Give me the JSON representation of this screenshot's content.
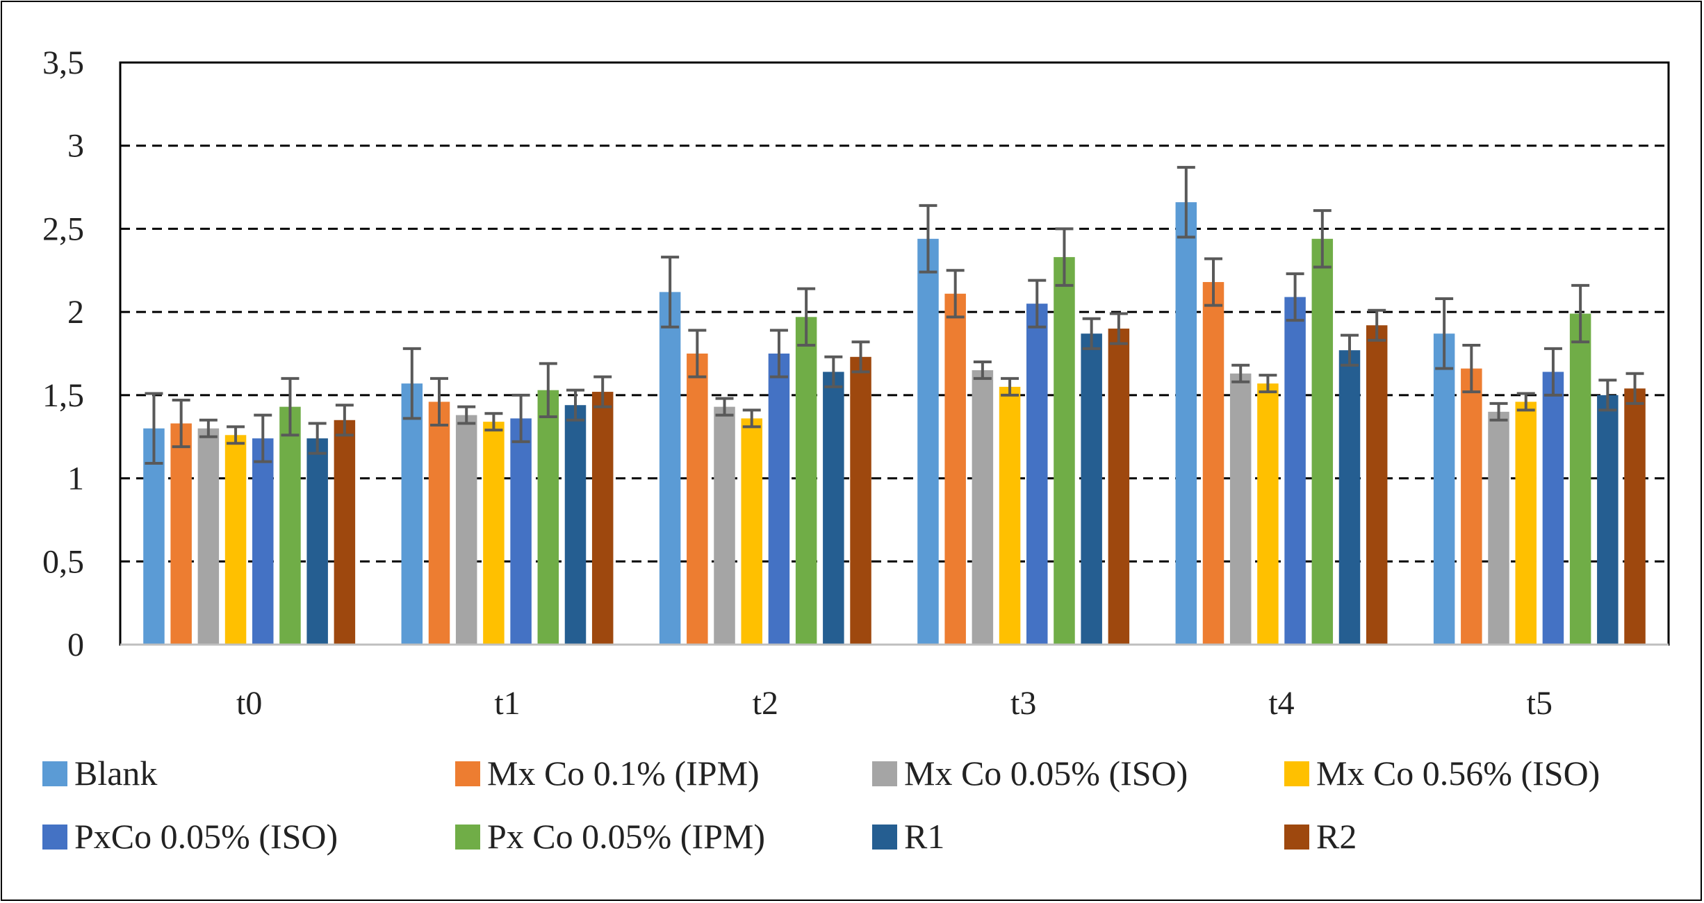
{
  "chart_data": {
    "type": "bar",
    "categories": [
      "t0",
      "t1",
      "t2",
      "t3",
      "t4",
      "t5"
    ],
    "ylim": [
      0,
      3.5
    ],
    "yticks": [
      "0",
      "0,5",
      "1",
      "1,5",
      "2",
      "2,5",
      "3",
      "3,5"
    ],
    "ytick_values": [
      0,
      0.5,
      1,
      1.5,
      2,
      2.5,
      3,
      3.5
    ],
    "grid": "dashed horizontal",
    "legend_position": "bottom",
    "error_bar_color": "#595959",
    "series": [
      {
        "name": "Blank",
        "color": "#5B9BD5",
        "values": [
          1.3,
          1.57,
          2.12,
          2.44,
          2.66,
          1.87
        ],
        "errors": [
          0.21,
          0.21,
          0.21,
          0.2,
          0.21,
          0.21
        ]
      },
      {
        "name": "Mx Co 0.1% (IPM)",
        "color": "#ED7D31",
        "values": [
          1.33,
          1.46,
          1.75,
          2.11,
          2.18,
          1.66
        ],
        "errors": [
          0.14,
          0.14,
          0.14,
          0.14,
          0.14,
          0.14
        ]
      },
      {
        "name": "Mx Co 0.05% (ISO)",
        "color": "#A5A5A5",
        "values": [
          1.3,
          1.38,
          1.43,
          1.65,
          1.63,
          1.4
        ],
        "errors": [
          0.05,
          0.05,
          0.05,
          0.05,
          0.05,
          0.05
        ]
      },
      {
        "name": "Mx Co 0.56% (ISO)",
        "color": "#FFC000",
        "values": [
          1.26,
          1.34,
          1.36,
          1.55,
          1.57,
          1.46
        ],
        "errors": [
          0.05,
          0.05,
          0.05,
          0.05,
          0.05,
          0.05
        ]
      },
      {
        "name": "PxCo 0.05% (ISO)",
        "color": "#4472C4",
        "values": [
          1.24,
          1.36,
          1.75,
          2.05,
          2.09,
          1.64
        ],
        "errors": [
          0.14,
          0.14,
          0.14,
          0.14,
          0.14,
          0.14
        ]
      },
      {
        "name": "Px Co 0.05% (IPM)",
        "color": "#70AD47",
        "values": [
          1.43,
          1.53,
          1.97,
          2.33,
          2.44,
          1.99
        ],
        "errors": [
          0.17,
          0.16,
          0.17,
          0.17,
          0.17,
          0.17
        ]
      },
      {
        "name": "R1",
        "color": "#255E91",
        "values": [
          1.24,
          1.44,
          1.64,
          1.87,
          1.77,
          1.5
        ],
        "errors": [
          0.09,
          0.09,
          0.09,
          0.09,
          0.09,
          0.09
        ]
      },
      {
        "name": "R2",
        "color": "#9E480E",
        "values": [
          1.35,
          1.52,
          1.73,
          1.9,
          1.92,
          1.54
        ],
        "errors": [
          0.09,
          0.09,
          0.09,
          0.09,
          0.09,
          0.09
        ]
      }
    ]
  }
}
